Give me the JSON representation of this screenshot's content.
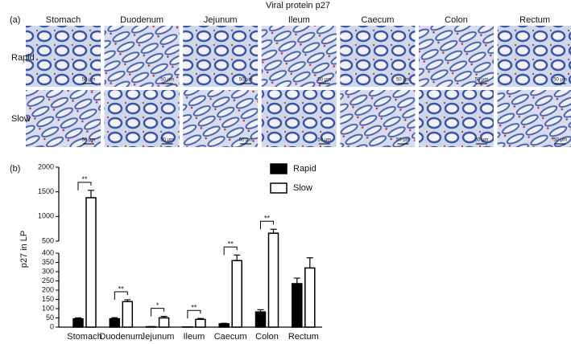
{
  "figure_title": "Viral protein p27",
  "panel_a": {
    "label": "(a)",
    "columns": [
      "Stomach",
      "Duodenum",
      "Jejunum",
      "Ileum",
      "Caecum",
      "Colon",
      "Rectum"
    ],
    "rows": [
      "Rapid",
      "Slow"
    ],
    "scale_bar": "50 μm"
  },
  "chart_data": {
    "type": "bar",
    "panel_label": "(b)",
    "y_label": "p27 in LP",
    "categories": [
      "Stomach",
      "Duodenum",
      "Jejunum",
      "Ileum",
      "Caecum",
      "Colon",
      "Rectum"
    ],
    "series": [
      {
        "name": "Rapid",
        "color": "#000000",
        "values": [
          45,
          45,
          2,
          1,
          18,
          82,
          235
        ],
        "errors": [
          5,
          6,
          1,
          1,
          3,
          12,
          30
        ]
      },
      {
        "name": "Slow",
        "color": "#ffffff",
        "values": [
          1380,
          138,
          50,
          42,
          360,
          660,
          320
        ],
        "errors": [
          150,
          10,
          8,
          5,
          30,
          80,
          55
        ]
      }
    ],
    "significance": [
      "**",
      "**",
      "*",
      "**",
      "**",
      "**",
      null
    ],
    "segments": [
      {
        "ylim": [
          0,
          400
        ],
        "yticks": [
          0,
          50,
          100,
          150,
          200,
          250,
          300,
          350,
          400
        ]
      },
      {
        "ylim": [
          500,
          2000
        ],
        "yticks": [
          500,
          1000,
          1500,
          2000
        ]
      }
    ],
    "legend": "top-right"
  }
}
